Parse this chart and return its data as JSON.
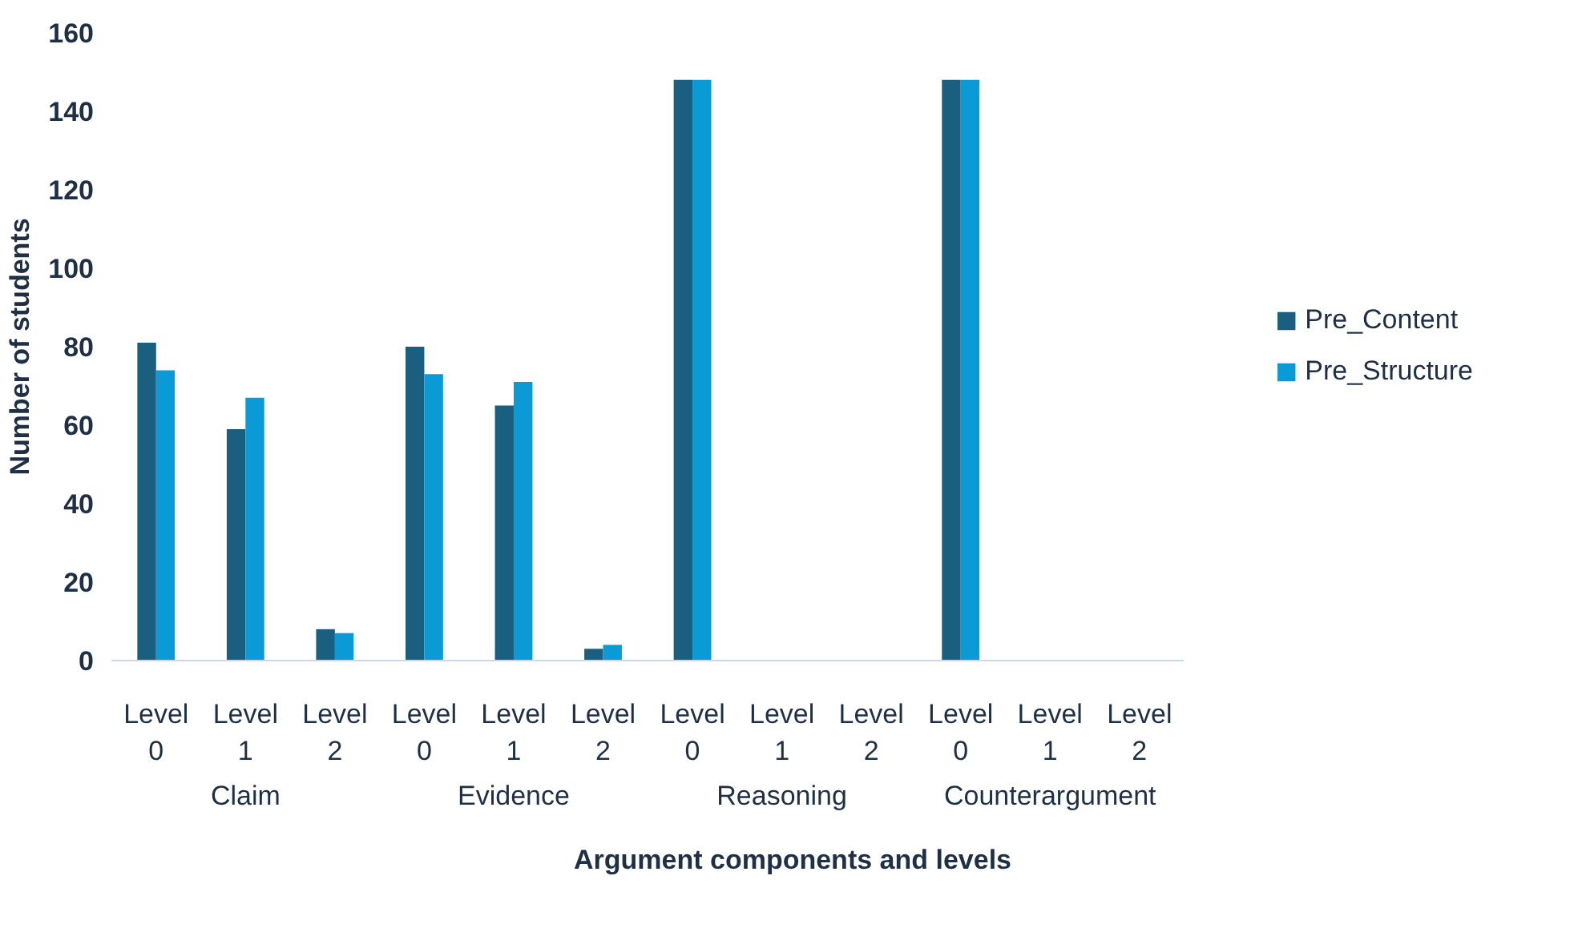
{
  "chart_data": {
    "type": "bar",
    "xlabel": "Argument components and levels",
    "ylabel": "Number of students",
    "categories": [
      "Level 0",
      "Level 1",
      "Level 2",
      "Level 0",
      "Level 1",
      "Level 2",
      "Level 0",
      "Level 1",
      "Level 2",
      "Level 0",
      "Level 1",
      "Level 2"
    ],
    "annotations": [
      "Claim",
      "Evidence",
      "Reasoning",
      "Counterargument"
    ],
    "series": [
      {
        "name": "Pre_Content",
        "color": "#1a5e80",
        "values": [
          81,
          59,
          8,
          80,
          65,
          3,
          148,
          0,
          0,
          148,
          0,
          0
        ]
      },
      {
        "name": "Pre_Structure",
        "color": "#0a9ad6",
        "values": [
          74,
          67,
          7,
          73,
          71,
          4,
          148,
          0,
          0,
          148,
          0,
          0
        ]
      }
    ],
    "ylim": [
      0,
      160
    ],
    "yticks": [
      0,
      20,
      40,
      60,
      80,
      100,
      120,
      140,
      160
    ],
    "grid": false,
    "legend": "right"
  }
}
